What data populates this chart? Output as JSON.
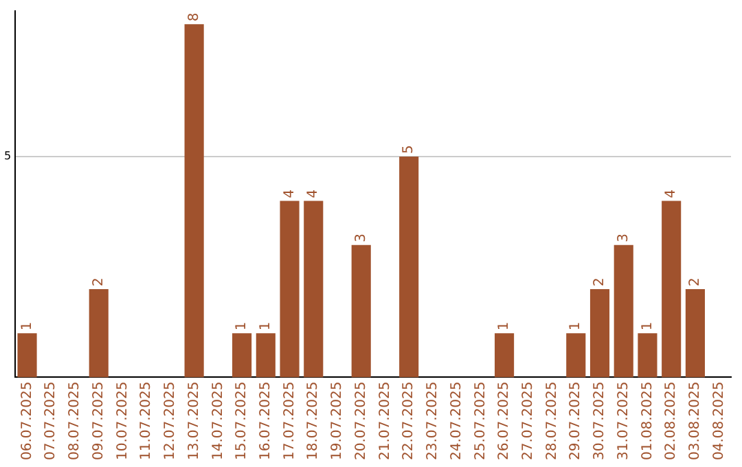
{
  "chart_data": {
    "type": "bar",
    "categories": [
      "06.07.2025",
      "07.07.2025",
      "08.07.2025",
      "09.07.2025",
      "10.07.2025",
      "11.07.2025",
      "12.07.2025",
      "13.07.2025",
      "14.07.2025",
      "15.07.2025",
      "16.07.2025",
      "17.07.2025",
      "18.07.2025",
      "19.07.2025",
      "20.07.2025",
      "21.07.2025",
      "22.07.2025",
      "23.07.2025",
      "24.07.2025",
      "25.07.2025",
      "26.07.2025",
      "27.07.2025",
      "28.07.2025",
      "29.07.2025",
      "30.07.2025",
      "31.07.2025",
      "01.08.2025",
      "02.08.2025",
      "03.08.2025",
      "04.08.2025"
    ],
    "values": [
      1,
      0,
      0,
      2,
      0,
      0,
      0,
      8,
      0,
      1,
      1,
      4,
      4,
      0,
      3,
      0,
      5,
      0,
      0,
      0,
      1,
      0,
      0,
      1,
      2,
      3,
      1,
      4,
      2,
      0
    ],
    "value_labels": [
      "1",
      null,
      null,
      "2",
      null,
      null,
      null,
      "8",
      null,
      "1",
      "1",
      "4",
      "4",
      null,
      "3",
      null,
      "5",
      null,
      null,
      null,
      "1",
      null,
      null,
      "1",
      "2",
      "3",
      "1",
      "4",
      "2",
      null
    ],
    "color": "#a0522d",
    "ylim": [
      0,
      8.3
    ],
    "yticks": [
      5
    ],
    "grid": "y",
    "legend": false
  }
}
